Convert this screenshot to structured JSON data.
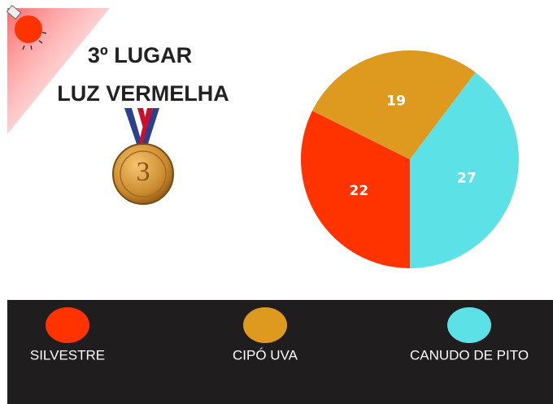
{
  "chart_data": {
    "type": "pie",
    "title": "3º LUGAR",
    "subtitle": "LUZ VERMELHA",
    "series": [
      {
        "name": "SILVESTRE",
        "color": "#ff3300",
        "values": [
          22
        ]
      },
      {
        "name": "CIPÓ UVA",
        "color": "#de9a1f",
        "values": [
          19
        ]
      },
      {
        "name": "CANUDO DE PITO",
        "color": "#5ce1e6",
        "values": [
          27
        ]
      }
    ]
  }
}
